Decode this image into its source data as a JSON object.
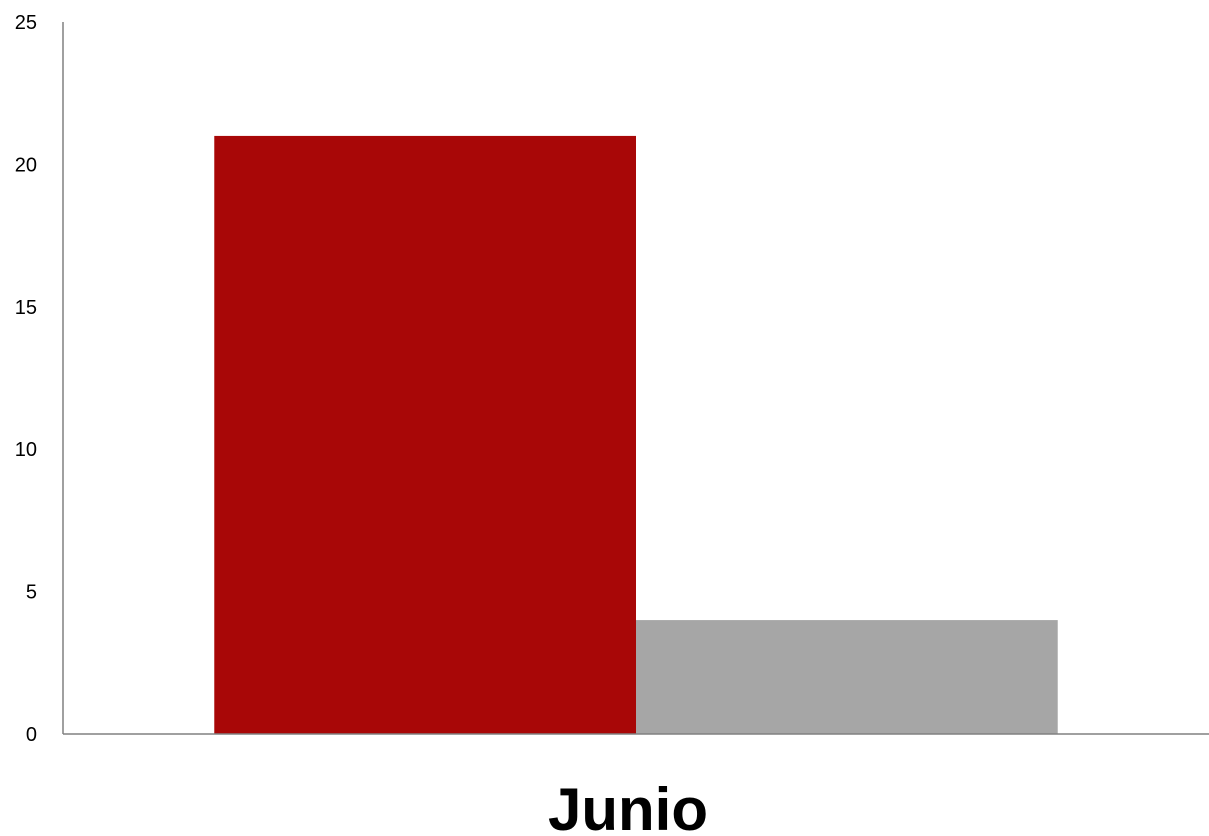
{
  "chart_data": {
    "type": "bar",
    "categories": [
      "Junio"
    ],
    "series": [
      {
        "values": [
          21
        ],
        "color": "#a80707"
      },
      {
        "values": [
          4
        ],
        "color": "#a6a6a6"
      }
    ],
    "ylim": [
      0,
      25
    ],
    "yticks": [
      0,
      5,
      10,
      15,
      20,
      25
    ],
    "ytick_labels": [
      "0",
      "5",
      "10",
      "15",
      "20",
      "25"
    ],
    "grid": false,
    "legend": "none",
    "axis_color": "#808080"
  }
}
